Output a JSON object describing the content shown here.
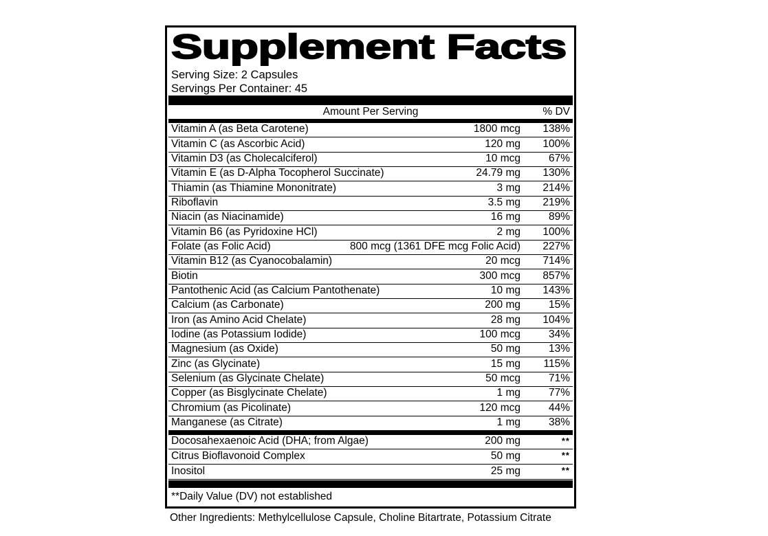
{
  "label": {
    "title": "Supplement Facts",
    "serving_size": "Serving Size: 2 Capsules",
    "servings_per_container": "Servings Per Container: 45",
    "columns": {
      "amount": "Amount Per Serving",
      "dv": "% DV"
    },
    "nutrients": [
      {
        "name": "Vitamin A (as Beta Carotene)",
        "amount": "1800 mcg",
        "dv": "138%"
      },
      {
        "name": "Vitamin C (as Ascorbic Acid)",
        "amount": "120 mg",
        "dv": "100%"
      },
      {
        "name": "Vitamin D3 (as Cholecalciferol)",
        "amount": "10 mcg",
        "dv": "67%"
      },
      {
        "name": "Vitamin E (as D-Alpha Tocopherol Succinate)",
        "amount": "24.79 mg",
        "dv": "130%"
      },
      {
        "name": "Thiamin (as Thiamine Mononitrate)",
        "amount": "3 mg",
        "dv": "214%"
      },
      {
        "name": "Riboflavin",
        "amount": "3.5 mg",
        "dv": "219%"
      },
      {
        "name": "Niacin (as Niacinamide)",
        "amount": "16 mg",
        "dv": "89%"
      },
      {
        "name": "Vitamin B6 (as Pyridoxine HCl)",
        "amount": "2 mg",
        "dv": "100%"
      },
      {
        "name": "Folate (as Folic Acid)",
        "amount": "800 mcg (1361 DFE mcg Folic Acid)",
        "dv": "227%"
      },
      {
        "name": "Vitamin B12 (as Cyanocobalamin)",
        "amount": "20 mcg",
        "dv": "714%"
      },
      {
        "name": "Biotin",
        "amount": "300 mcg",
        "dv": "857%"
      },
      {
        "name": "Pantothenic Acid (as Calcium Pantothenate)",
        "amount": "10 mg",
        "dv": "143%"
      },
      {
        "name": "Calcium (as Carbonate)",
        "amount": "200 mg",
        "dv": "15%"
      },
      {
        "name": "Iron (as Amino Acid Chelate)",
        "amount": "28 mg",
        "dv": "104%"
      },
      {
        "name": "Iodine (as Potassium Iodide)",
        "amount": "100 mcg",
        "dv": "34%"
      },
      {
        "name": "Magnesium (as Oxide)",
        "amount": "50 mg",
        "dv": "13%"
      },
      {
        "name": "Zinc (as Glycinate)",
        "amount": "15 mg",
        "dv": "115%"
      },
      {
        "name": "Selenium (as Glycinate Chelate)",
        "amount": "50 mcg",
        "dv": "71%"
      },
      {
        "name": "Copper (as Bisglycinate Chelate)",
        "amount": "1 mg",
        "dv": "77%"
      },
      {
        "name": "Chromium (as Picolinate)",
        "amount": "120 mcg",
        "dv": "44%"
      },
      {
        "name": "Manganese (as Citrate)",
        "amount": "1 mg",
        "dv": "38%"
      }
    ],
    "other_nutrients": [
      {
        "name": "Docosahexaenoic Acid (DHA; from Algae)",
        "amount": "200 mg",
        "dv": "**"
      },
      {
        "name": "Citrus Bioflavonoid Complex",
        "amount": "50 mg",
        "dv": "**"
      },
      {
        "name": "Inositol",
        "amount": "25 mg",
        "dv": "**"
      }
    ],
    "footnote": "**Daily Value (DV) not established",
    "other_ingredients": "Other Ingredients: Methylcellulose Capsule, Choline Bitartrate, Potassium Citrate",
    "colors": {
      "ink": "#000000",
      "background": "#ffffff"
    }
  }
}
